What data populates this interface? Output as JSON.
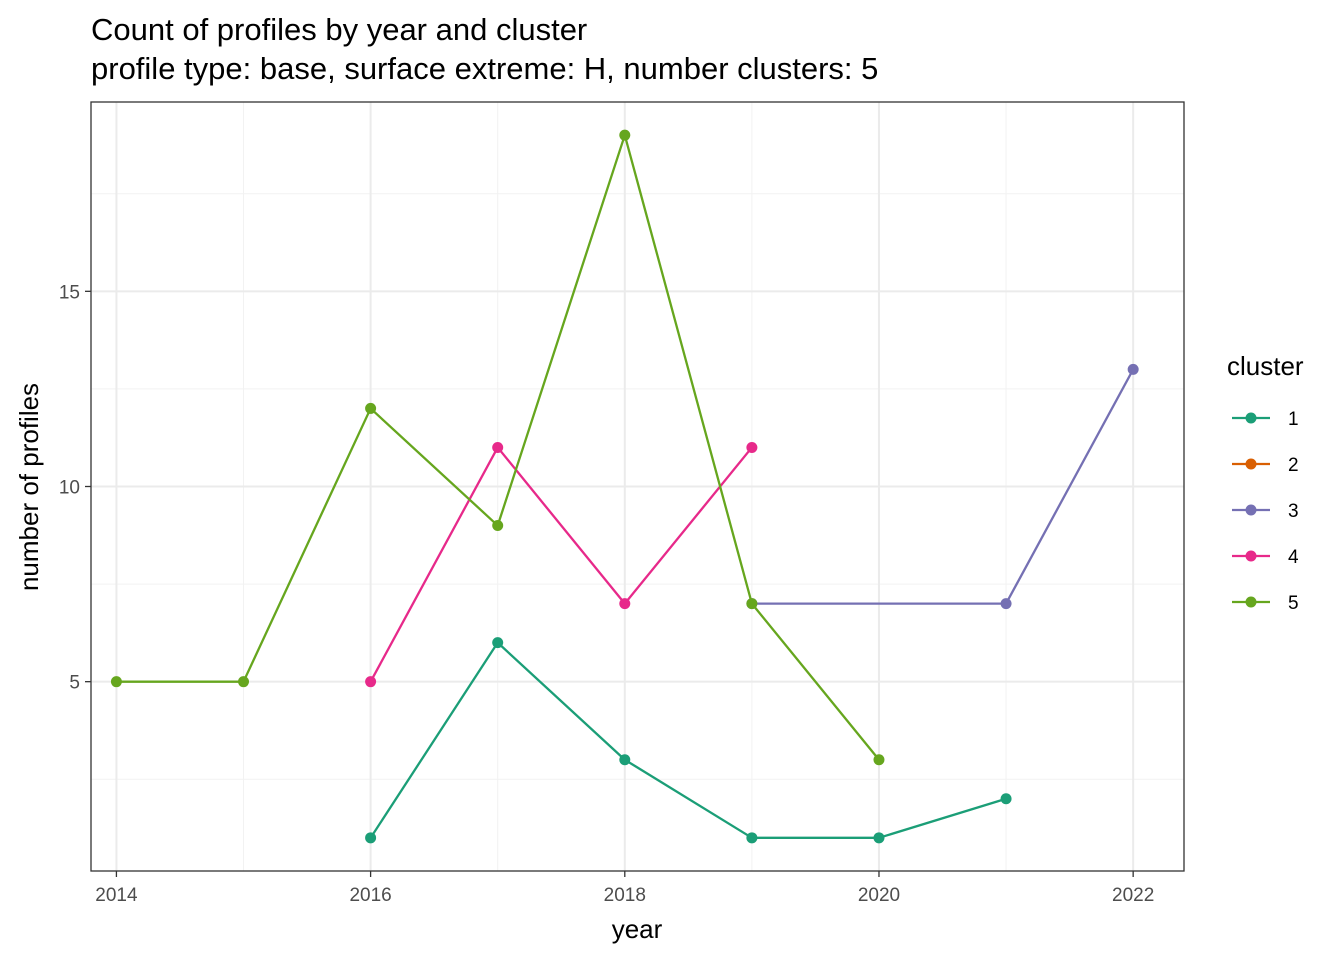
{
  "chart_data": {
    "type": "line",
    "title": "Count of profiles by year and cluster",
    "subtitle": "profile type: base, surface extreme: H, number clusters: 5",
    "xlabel": "year",
    "ylabel": "number of profiles",
    "xlim": [
      2013.8,
      2022.4
    ],
    "ylim": [
      0.15,
      19.85
    ],
    "x_ticks": [
      2014,
      2016,
      2018,
      2020,
      2022
    ],
    "x_tick_labels": [
      "2014",
      "2016",
      "2018",
      "2020",
      "2022"
    ],
    "x_minor": [
      2015,
      2017,
      2019,
      2021
    ],
    "y_ticks": [
      5,
      10,
      15
    ],
    "y_tick_labels": [
      "5",
      "10",
      "15"
    ],
    "y_minor": [
      2.5,
      7.5,
      12.5,
      17.5
    ],
    "grid": true,
    "legend_title": "cluster",
    "legend_position": "right",
    "series": [
      {
        "name": "1",
        "color": "#1b9e77",
        "x": [
          2016,
          2017,
          2018,
          2019,
          2020,
          2021
        ],
        "y": [
          1,
          6,
          3,
          1,
          1,
          2
        ]
      },
      {
        "name": "2",
        "color": "#d95f02",
        "x": [],
        "y": []
      },
      {
        "name": "3",
        "color": "#7570b3",
        "x": [
          2019,
          2021,
          2022
        ],
        "y": [
          7,
          7,
          13
        ]
      },
      {
        "name": "4",
        "color": "#e7298a",
        "x": [
          2016,
          2017,
          2018,
          2019
        ],
        "y": [
          5,
          11,
          7,
          11
        ]
      },
      {
        "name": "5",
        "color": "#66a61e",
        "x": [
          2014,
          2015,
          2016,
          2017,
          2018,
          2019,
          2020
        ],
        "y": [
          5,
          5,
          12,
          9,
          19,
          7,
          3
        ]
      }
    ]
  }
}
